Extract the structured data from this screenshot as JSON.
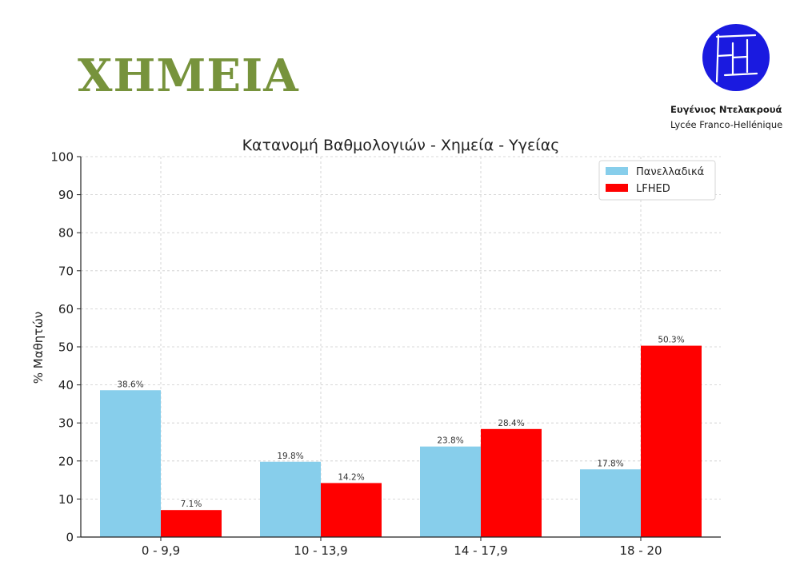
{
  "header": {
    "title": "ΧΗΜΕΙΑ",
    "org_name": "Ευγένιος Ντελακρουά",
    "org_subtitle": "Lycée Franco-Hellénique"
  },
  "logo": {
    "text": "FH",
    "color": "#1a1ae0"
  },
  "colors": {
    "title": "#77933c",
    "panellinies": "#87ceeb",
    "lfhed": "#ff0000"
  },
  "chart_data": {
    "type": "bar",
    "title": "Κατανομή Βαθμολογιών - Χημεία - Υγείας",
    "xlabel": "",
    "ylabel": "% Μαθητών",
    "ylim": [
      0,
      100
    ],
    "yticks": [
      0,
      10,
      20,
      30,
      40,
      50,
      60,
      70,
      80,
      90,
      100
    ],
    "categories": [
      "0 - 9,9",
      "10 - 13,9",
      "14 - 17,9",
      "18 - 20"
    ],
    "series": [
      {
        "name": "Πανελλαδικά",
        "color": "#87ceeb",
        "values": [
          38.6,
          19.8,
          23.8,
          17.8
        ],
        "labels": [
          "38.6%",
          "19.8%",
          "23.8%",
          "17.8%"
        ]
      },
      {
        "name": "LFHED",
        "color": "#ff0000",
        "values": [
          7.1,
          14.2,
          28.4,
          50.3
        ],
        "labels": [
          "7.1%",
          "14.2%",
          "28.4%",
          "50.3%"
        ]
      }
    ],
    "grid": true,
    "legend": "top-right"
  }
}
